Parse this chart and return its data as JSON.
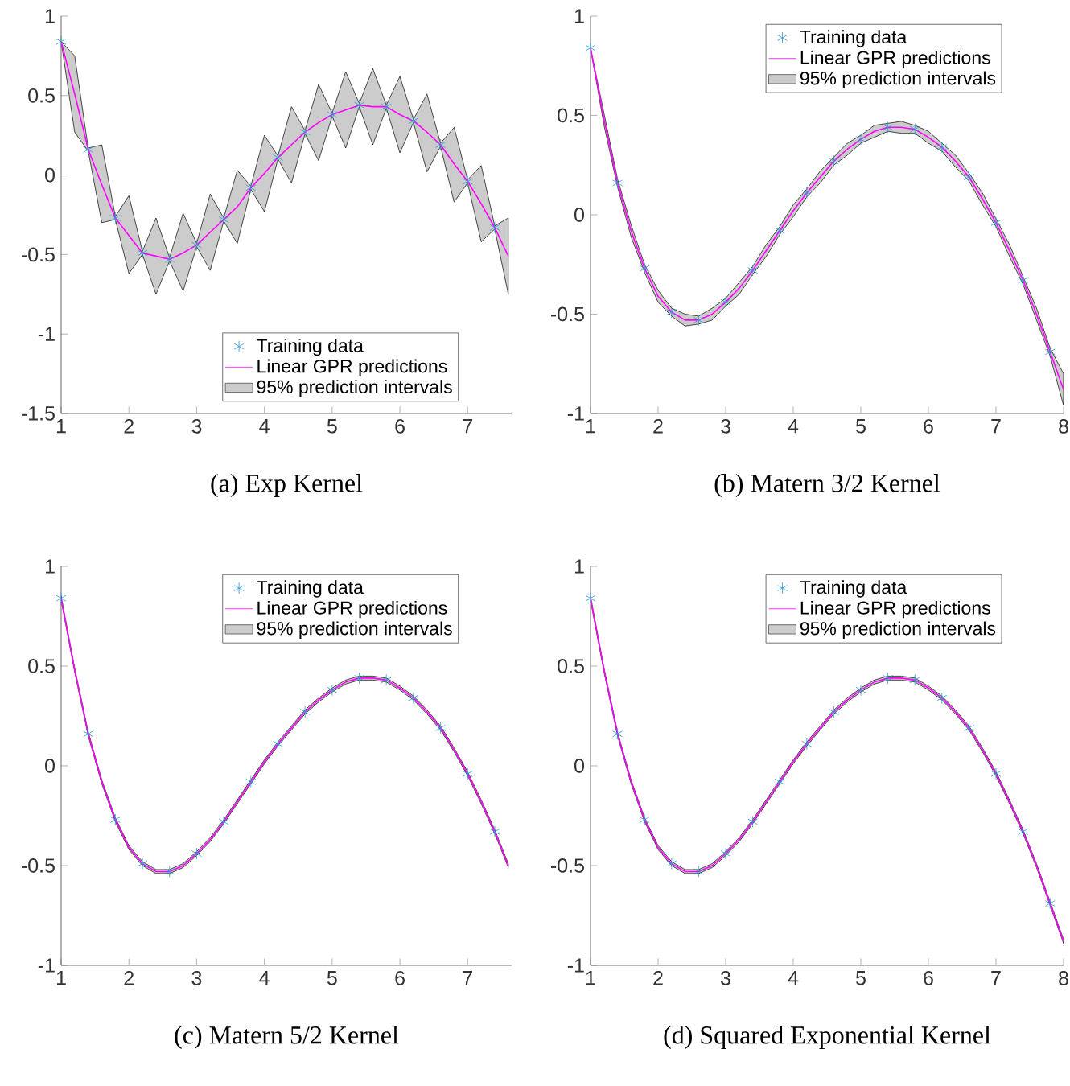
{
  "chart_data": [
    {
      "type": "line",
      "title": "(a) Exp Kernel",
      "annotations": [
        "95% prediction intervals"
      ],
      "xlim": [
        1,
        7.65
      ],
      "ylim": [
        -1.5,
        1
      ],
      "xticks": [
        1,
        2,
        3,
        4,
        5,
        6,
        7
      ],
      "yticks": [
        -1.5,
        -1,
        -0.5,
        0,
        0.5,
        1
      ],
      "legend": "bottom",
      "series": [
        {
          "type": "scatter",
          "name": "Training data",
          "color": "#2b95d6",
          "marker": "cross",
          "x": [
            1,
            1.4,
            1.8,
            2.2,
            2.6,
            3,
            3.4,
            3.8,
            4.2,
            4.6,
            5,
            5.4,
            5.8,
            6.2,
            6.6,
            7,
            7.4
          ],
          "values": [
            0.84,
            0.16,
            -0.27,
            -0.49,
            -0.53,
            -0.44,
            -0.28,
            -0.08,
            0.11,
            0.27,
            0.38,
            0.44,
            0.43,
            0.34,
            0.19,
            -0.04,
            -0.33
          ]
        },
        {
          "name": "Linear GPR predictions",
          "color": "#ff00ff",
          "x": [
            1,
            1.2,
            1.4,
            1.6,
            1.8,
            2,
            2.2,
            2.4,
            2.6,
            2.8,
            3,
            3.2,
            3.4,
            3.6,
            3.8,
            4,
            4.2,
            4.4,
            4.6,
            4.8,
            5,
            5.2,
            5.4,
            5.6,
            5.8,
            6,
            6.2,
            6.4,
            6.6,
            6.8,
            7,
            7.2,
            7.4,
            7.6
          ],
          "values": [
            0.84,
            0.51,
            0.16,
            -0.06,
            -0.27,
            -0.38,
            -0.49,
            -0.51,
            -0.53,
            -0.49,
            -0.44,
            -0.36,
            -0.28,
            -0.2,
            -0.08,
            0.01,
            0.11,
            0.19,
            0.27,
            0.33,
            0.38,
            0.41,
            0.44,
            0.43,
            0.43,
            0.38,
            0.34,
            0.27,
            0.19,
            0.07,
            -0.04,
            -0.18,
            -0.33,
            -0.51
          ],
          "upper": [
            0.84,
            0.75,
            0.17,
            0.19,
            -0.26,
            -0.13,
            -0.48,
            -0.27,
            -0.52,
            -0.24,
            -0.43,
            -0.12,
            -0.27,
            0.03,
            -0.07,
            0.25,
            0.12,
            0.43,
            0.28,
            0.57,
            0.39,
            0.65,
            0.45,
            0.67,
            0.44,
            0.62,
            0.35,
            0.51,
            0.2,
            0.3,
            -0.03,
            0.06,
            -0.32,
            -0.27
          ],
          "lower": [
            0.84,
            0.27,
            0.15,
            -0.3,
            -0.28,
            -0.62,
            -0.5,
            -0.75,
            -0.54,
            -0.73,
            -0.45,
            -0.6,
            -0.29,
            -0.43,
            -0.09,
            -0.23,
            0.1,
            -0.05,
            0.26,
            0.09,
            0.37,
            0.17,
            0.43,
            0.19,
            0.42,
            0.14,
            0.33,
            0.02,
            0.18,
            -0.17,
            -0.05,
            -0.42,
            -0.34,
            -0.75
          ]
        }
      ]
    },
    {
      "type": "line",
      "title": "(b) Matern 3/2 Kernel",
      "annotations": [
        "95% prediction intervals"
      ],
      "xlim": [
        1,
        8
      ],
      "ylim": [
        -1,
        1
      ],
      "xticks": [
        1,
        2,
        3,
        4,
        5,
        6,
        7,
        8
      ],
      "yticks": [
        -1,
        -0.5,
        0,
        0.5,
        1
      ],
      "legend": "top",
      "series": [
        {
          "type": "scatter",
          "name": "Training data",
          "color": "#2b95d6",
          "marker": "cross",
          "x": [
            1,
            1.4,
            1.8,
            2.2,
            2.6,
            3,
            3.4,
            3.8,
            4.2,
            4.6,
            5,
            5.4,
            5.8,
            6.2,
            6.6,
            7,
            7.4,
            7.8
          ],
          "values": [
            0.84,
            0.16,
            -0.27,
            -0.49,
            -0.53,
            -0.44,
            -0.28,
            -0.08,
            0.11,
            0.27,
            0.38,
            0.44,
            0.43,
            0.34,
            0.19,
            -0.04,
            -0.33,
            -0.69
          ]
        },
        {
          "name": "Linear GPR predictions",
          "color": "#ff00ff",
          "x": [
            1,
            1.2,
            1.4,
            1.6,
            1.8,
            2,
            2.2,
            2.4,
            2.6,
            2.8,
            3,
            3.2,
            3.4,
            3.6,
            3.8,
            4,
            4.2,
            4.4,
            4.6,
            4.8,
            5,
            5.2,
            5.4,
            5.6,
            5.8,
            6,
            6.2,
            6.4,
            6.6,
            6.8,
            7,
            7.2,
            7.4,
            7.6,
            7.8,
            8
          ],
          "values": [
            0.84,
            0.48,
            0.16,
            -0.08,
            -0.27,
            -0.41,
            -0.49,
            -0.53,
            -0.53,
            -0.5,
            -0.44,
            -0.37,
            -0.28,
            -0.18,
            -0.08,
            0.02,
            0.11,
            0.19,
            0.27,
            0.33,
            0.38,
            0.42,
            0.44,
            0.44,
            0.43,
            0.39,
            0.34,
            0.27,
            0.19,
            0.08,
            -0.04,
            -0.18,
            -0.33,
            -0.5,
            -0.69,
            -0.88
          ],
          "upper": [
            0.84,
            0.51,
            0.18,
            -0.05,
            -0.25,
            -0.38,
            -0.47,
            -0.5,
            -0.51,
            -0.47,
            -0.42,
            -0.34,
            -0.26,
            -0.15,
            -0.06,
            0.05,
            0.13,
            0.22,
            0.29,
            0.36,
            0.4,
            0.45,
            0.46,
            0.47,
            0.45,
            0.42,
            0.36,
            0.3,
            0.21,
            0.11,
            -0.02,
            -0.15,
            -0.31,
            -0.47,
            -0.67,
            -0.8
          ],
          "lower": [
            0.84,
            0.45,
            0.14,
            -0.11,
            -0.29,
            -0.44,
            -0.51,
            -0.56,
            -0.55,
            -0.53,
            -0.46,
            -0.4,
            -0.3,
            -0.21,
            -0.1,
            -0.01,
            0.09,
            0.16,
            0.25,
            0.3,
            0.36,
            0.39,
            0.42,
            0.41,
            0.41,
            0.36,
            0.32,
            0.24,
            0.17,
            0.05,
            -0.06,
            -0.21,
            -0.35,
            -0.53,
            -0.71,
            -0.96
          ]
        }
      ]
    },
    {
      "type": "line",
      "title": "(c) Matern 5/2 Kernel",
      "annotations": [
        "95% prediction intervals"
      ],
      "xlim": [
        1,
        7.65
      ],
      "ylim": [
        -1,
        1
      ],
      "xticks": [
        1,
        2,
        3,
        4,
        5,
        6,
        7
      ],
      "yticks": [
        -1,
        -0.5,
        0,
        0.5,
        1
      ],
      "legend": "top",
      "series": [
        {
          "type": "scatter",
          "name": "Training data",
          "color": "#2b95d6",
          "marker": "cross",
          "x": [
            1,
            1.4,
            1.8,
            2.2,
            2.6,
            3,
            3.4,
            3.8,
            4.2,
            4.6,
            5,
            5.4,
            5.8,
            6.2,
            6.6,
            7,
            7.4
          ],
          "values": [
            0.84,
            0.16,
            -0.27,
            -0.49,
            -0.53,
            -0.44,
            -0.28,
            -0.08,
            0.11,
            0.27,
            0.38,
            0.44,
            0.43,
            0.34,
            0.19,
            -0.04,
            -0.33
          ]
        },
        {
          "name": "Linear GPR predictions",
          "color": "#ff00ff",
          "x": [
            1,
            1.2,
            1.4,
            1.6,
            1.8,
            2,
            2.2,
            2.4,
            2.6,
            2.8,
            3,
            3.2,
            3.4,
            3.6,
            3.8,
            4,
            4.2,
            4.4,
            4.6,
            4.8,
            5,
            5.2,
            5.4,
            5.6,
            5.8,
            6,
            6.2,
            6.4,
            6.6,
            6.8,
            7,
            7.2,
            7.4,
            7.6
          ],
          "values": [
            0.84,
            0.48,
            0.16,
            -0.08,
            -0.27,
            -0.41,
            -0.49,
            -0.53,
            -0.53,
            -0.5,
            -0.44,
            -0.37,
            -0.28,
            -0.18,
            -0.08,
            0.02,
            0.11,
            0.19,
            0.27,
            0.33,
            0.38,
            0.42,
            0.44,
            0.44,
            0.43,
            0.39,
            0.34,
            0.27,
            0.19,
            0.08,
            -0.04,
            -0.18,
            -0.33,
            -0.5
          ],
          "upper": [
            0.85,
            0.49,
            0.17,
            -0.07,
            -0.26,
            -0.4,
            -0.48,
            -0.52,
            -0.52,
            -0.49,
            -0.43,
            -0.36,
            -0.27,
            -0.17,
            -0.07,
            0.03,
            0.12,
            0.2,
            0.28,
            0.34,
            0.39,
            0.43,
            0.45,
            0.45,
            0.44,
            0.4,
            0.35,
            0.28,
            0.2,
            0.09,
            -0.03,
            -0.17,
            -0.32,
            -0.49
          ],
          "lower": [
            0.83,
            0.47,
            0.15,
            -0.09,
            -0.28,
            -0.42,
            -0.5,
            -0.54,
            -0.54,
            -0.51,
            -0.45,
            -0.38,
            -0.29,
            -0.19,
            -0.09,
            0.01,
            0.1,
            0.18,
            0.26,
            0.32,
            0.37,
            0.41,
            0.43,
            0.43,
            0.42,
            0.38,
            0.33,
            0.26,
            0.18,
            0.07,
            -0.05,
            -0.19,
            -0.34,
            -0.51
          ]
        }
      ]
    },
    {
      "type": "line",
      "title": "(d) Squared Exponential Kernel",
      "annotations": [
        "95% prediction intervals"
      ],
      "xlim": [
        1,
        8
      ],
      "ylim": [
        -1,
        1
      ],
      "xticks": [
        1,
        2,
        3,
        4,
        5,
        6,
        7,
        8
      ],
      "yticks": [
        -1,
        -0.5,
        0,
        0.5,
        1
      ],
      "legend": "top",
      "series": [
        {
          "type": "scatter",
          "name": "Training data",
          "color": "#2b95d6",
          "marker": "cross",
          "x": [
            1,
            1.4,
            1.8,
            2.2,
            2.6,
            3,
            3.4,
            3.8,
            4.2,
            4.6,
            5,
            5.4,
            5.8,
            6.2,
            6.6,
            7,
            7.4,
            7.8
          ],
          "values": [
            0.84,
            0.16,
            -0.27,
            -0.49,
            -0.53,
            -0.44,
            -0.28,
            -0.08,
            0.11,
            0.27,
            0.38,
            0.44,
            0.43,
            0.34,
            0.19,
            -0.04,
            -0.33,
            -0.69
          ]
        },
        {
          "name": "Linear GPR predictions",
          "color": "#ff00ff",
          "x": [
            1,
            1.2,
            1.4,
            1.6,
            1.8,
            2,
            2.2,
            2.4,
            2.6,
            2.8,
            3,
            3.2,
            3.4,
            3.6,
            3.8,
            4,
            4.2,
            4.4,
            4.6,
            4.8,
            5,
            5.2,
            5.4,
            5.6,
            5.8,
            6,
            6.2,
            6.4,
            6.6,
            6.8,
            7,
            7.2,
            7.4,
            7.6,
            7.8,
            8
          ],
          "values": [
            0.84,
            0.48,
            0.16,
            -0.08,
            -0.27,
            -0.41,
            -0.49,
            -0.53,
            -0.53,
            -0.5,
            -0.44,
            -0.37,
            -0.28,
            -0.18,
            -0.08,
            0.02,
            0.11,
            0.19,
            0.27,
            0.33,
            0.38,
            0.42,
            0.44,
            0.44,
            0.43,
            0.39,
            0.34,
            0.27,
            0.19,
            0.08,
            -0.04,
            -0.18,
            -0.33,
            -0.5,
            -0.69,
            -0.88
          ],
          "upper": [
            0.85,
            0.49,
            0.17,
            -0.07,
            -0.26,
            -0.4,
            -0.48,
            -0.52,
            -0.52,
            -0.49,
            -0.43,
            -0.36,
            -0.27,
            -0.17,
            -0.07,
            0.03,
            0.12,
            0.2,
            0.28,
            0.34,
            0.39,
            0.43,
            0.45,
            0.45,
            0.44,
            0.4,
            0.35,
            0.28,
            0.2,
            0.09,
            -0.03,
            -0.17,
            -0.32,
            -0.49,
            -0.68,
            -0.87
          ],
          "lower": [
            0.83,
            0.47,
            0.15,
            -0.09,
            -0.28,
            -0.42,
            -0.5,
            -0.54,
            -0.54,
            -0.51,
            -0.45,
            -0.38,
            -0.29,
            -0.19,
            -0.09,
            0.01,
            0.1,
            0.18,
            0.26,
            0.32,
            0.37,
            0.41,
            0.43,
            0.43,
            0.42,
            0.38,
            0.33,
            0.26,
            0.18,
            0.07,
            -0.05,
            -0.19,
            -0.34,
            -0.51,
            -0.7,
            -0.89
          ]
        }
      ]
    }
  ]
}
